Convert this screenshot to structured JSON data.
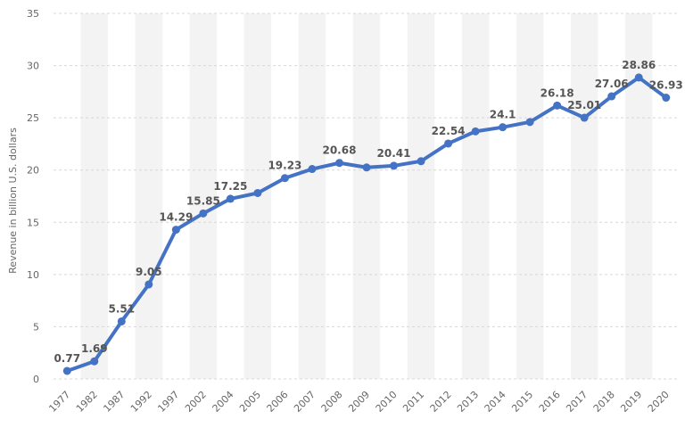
{
  "chart_data": {
    "type": "line",
    "title": "",
    "xlabel": "",
    "ylabel": "Revenue in billion U.S. dollars",
    "ylim": [
      0,
      35
    ],
    "yticks": [
      0,
      5,
      10,
      15,
      20,
      25,
      30,
      35
    ],
    "grid": true,
    "line_color": "#4472c4",
    "categories": [
      "1977",
      "1982",
      "1987",
      "1992",
      "1997",
      "2002",
      "2004",
      "2005",
      "2006",
      "2007",
      "2008",
      "2009",
      "2010",
      "2011",
      "2012",
      "2013",
      "2014",
      "2015",
      "2016",
      "2017",
      "2018",
      "2019",
      "2020"
    ],
    "series": [
      {
        "values": [
          0.77,
          1.69,
          5.51,
          9.05,
          14.29,
          15.85,
          17.25,
          17.8,
          19.23,
          20.1,
          20.68,
          20.25,
          20.41,
          20.85,
          22.54,
          23.7,
          24.1,
          24.6,
          26.18,
          25.01,
          27.06,
          28.86,
          26.93
        ],
        "labels": [
          "0.77",
          "1.69",
          "5.51",
          "9.05",
          "14.29",
          "15.85",
          "17.25",
          "",
          "19.23",
          "",
          "20.68",
          "",
          "20.41",
          "",
          "22.54",
          "",
          "24.1",
          "",
          "26.18",
          "25.01",
          "27.06",
          "28.86",
          "26.93"
        ]
      }
    ]
  }
}
